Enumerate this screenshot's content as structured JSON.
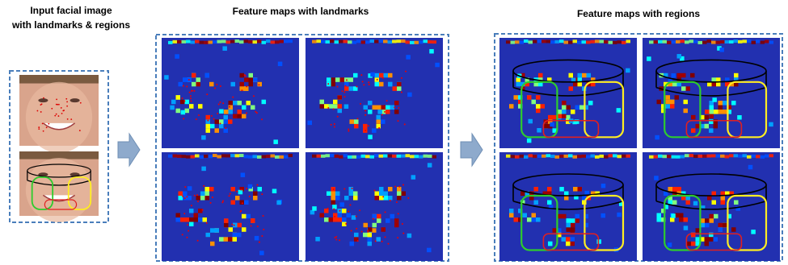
{
  "left_panel": {
    "title_lines": [
      "Input facial image",
      "with landmarks & regions"
    ]
  },
  "middle_panel": {
    "title": "Feature maps with landmarks"
  },
  "right_panel": {
    "title": "Feature maps with regions"
  }
}
